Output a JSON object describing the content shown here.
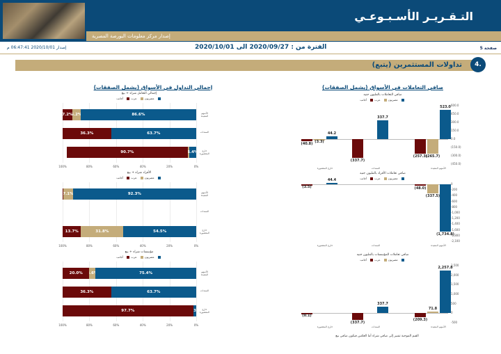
{
  "header": {
    "title": "التـقـريـر الأسـبـوعـي",
    "subtitle": "إصدار مركز معلومات البورصة المصرية"
  },
  "meta": {
    "page": "صفحة 5",
    "period": "الفترة من : 2020/09/27 الى 2020/10/01",
    "issue": "إصدار 2020/10/01 06:47:41 م"
  },
  "section": {
    "number": "4.",
    "title": "تداولات المستثمرين   (يتبع)",
    "left_column_title": "إجمالي التداول في الأسواق (يشمل الصفقات)",
    "right_column_title": "صافي التعاملات في الأسواق (يشمل الصفقات)"
  },
  "colors": {
    "blue": "#0b5a8c",
    "tan": "#c4ac7a",
    "maroon": "#6b0a0a",
    "navy": "#0b4a78"
  },
  "legend": {
    "egyptians": "مصريون",
    "arabs": "عرب",
    "foreigners": "أجانب"
  },
  "stack_charts": [
    {
      "title": "إجمالي التعامل شراء + بيع",
      "rows": [
        {
          "label": "الأسهم المقيدة",
          "values": [
            86.6,
            6.2,
            7.2
          ],
          "labels": [
            "86.6%",
            "6.2%",
            "7.2%"
          ]
        },
        {
          "label": "السندات",
          "values": [
            63.7,
            0,
            36.3
          ],
          "labels": [
            "63.7%",
            "",
            "36.3%"
          ]
        },
        {
          "label": "خارج المقصورة",
          "values": [
            5.4,
            0.9,
            90.7
          ],
          "labels": [
            "5.4%",
            "0.9%",
            "90.7%"
          ]
        }
      ],
      "ticks": [
        "100%",
        "80%",
        "60%",
        "40%",
        "20%",
        "0%"
      ]
    },
    {
      "title": "الأفراد شراء + بيع",
      "rows": [
        {
          "label": "الأسهم المقيدة",
          "values": [
            92.3,
            7.1,
            0.6
          ],
          "labels": [
            "92.3%",
            "7.1%",
            ""
          ]
        },
        {
          "label": "السندات",
          "values": [
            0,
            0,
            0
          ],
          "labels": [
            "",
            "",
            ""
          ]
        },
        {
          "label": "خارج المقصورة",
          "values": [
            54.5,
            31.8,
            13.7
          ],
          "labels": [
            "54.5%",
            "31.8%",
            "13.7%"
          ]
        }
      ],
      "ticks": [
        "100%",
        "80%",
        "60%",
        "40%",
        "20%",
        "0%"
      ]
    },
    {
      "title": "مؤسسات شراء + بيع",
      "rows": [
        {
          "label": "الأسهم المقيدة",
          "values": [
            75.4,
            4.6,
            20.0
          ],
          "labels": [
            "75.4%",
            "4.6%",
            "20.0%"
          ]
        },
        {
          "label": "السندات",
          "values": [
            63.7,
            0,
            36.3
          ],
          "labels": [
            "63.7%",
            "",
            "36.3%"
          ]
        },
        {
          "label": "خارج المقصورة",
          "values": [
            2.3,
            0,
            97.7
          ],
          "labels": [
            "2.3%",
            "",
            "97.7%"
          ]
        }
      ],
      "ticks": [
        "100%",
        "80%",
        "60%",
        "40%",
        "20%",
        "0%"
      ]
    }
  ],
  "chart_data": [
    {
      "type": "bar",
      "title": "صافي التعاملات بالمليون جنيه",
      "categories": [
        "الأسهم المقيدة",
        "السندات",
        "خارج المقصورة"
      ],
      "series": [
        {
          "name": "مصريون",
          "values": [
            523.0,
            337.7,
            44.2
          ]
        },
        {
          "name": "عرب",
          "values": [
            -265.7,
            0,
            -3.3
          ]
        },
        {
          "name": "أجانب",
          "values": [
            -257.3,
            -337.7,
            -40.8
          ]
        }
      ],
      "labels": [
        [
          "523.0",
          "(265.7)",
          "(257.3)"
        ],
        [
          "337.7",
          "",
          "(337.7)"
        ],
        [
          "44.2",
          "(3.3)",
          "(40.8)"
        ]
      ],
      "yticks": [
        "600.0",
        "450.0",
        "300.0",
        "150.0",
        "0.0",
        "(150.0)",
        "(300.0)",
        "(450.0)"
      ],
      "ylim": [
        -450,
        600
      ]
    },
    {
      "type": "bar",
      "title": "صافي تعاملات الأفراد بالمليون جنيه",
      "categories": [
        "الأسهم المقيدة",
        "السندات",
        "خارج المقصورة"
      ],
      "series": [
        {
          "name": "مصريون",
          "values": [
            -1734.8,
            0,
            44.4
          ]
        },
        {
          "name": "عرب",
          "values": [
            -337.5,
            0,
            0
          ]
        },
        {
          "name": "أجانب",
          "values": [
            -48.0,
            0,
            -3.5
          ]
        }
      ],
      "labels": [
        [
          "(1,734.8)",
          "(337.5)",
          "(48.0)"
        ],
        [
          "",
          "",
          ""
        ],
        [
          "44.4",
          "",
          "(3.5)"
        ]
      ],
      "yticks": [
        "0",
        "-200",
        "-400",
        "-600",
        "-800",
        "-1,000",
        "-1,200",
        "-1,400",
        "-1,600",
        "-1,800",
        "-2,100"
      ],
      "ylim": [
        -2100,
        0
      ]
    },
    {
      "type": "bar",
      "title": "صافي تعاملات المؤسسات بالمليون جنيه",
      "categories": [
        "الأسهم المقيدة",
        "السندات",
        "خارج المقصورة"
      ],
      "series": [
        {
          "name": "مصريون",
          "values": [
            2257.8,
            337.7,
            0
          ]
        },
        {
          "name": "عرب",
          "values": [
            71.8,
            0,
            0
          ]
        },
        {
          "name": "أجانب",
          "values": [
            -209.3,
            -337.7,
            -0.1
          ]
        }
      ],
      "labels": [
        [
          "2,257.8",
          "71.8",
          "(209.3)"
        ],
        [
          "337.7",
          "",
          "(337.7)"
        ],
        [
          "",
          "",
          "(0.1)"
        ]
      ],
      "yticks": [
        "2,500",
        "2,000",
        "1,500",
        "1,000",
        "500",
        "0",
        "-500"
      ],
      "ylim": [
        -500,
        2500
      ]
    }
  ],
  "footnote": "القيم الموجبة تشير إلى صافي شراء أما العكس فيكون صافي بيع"
}
